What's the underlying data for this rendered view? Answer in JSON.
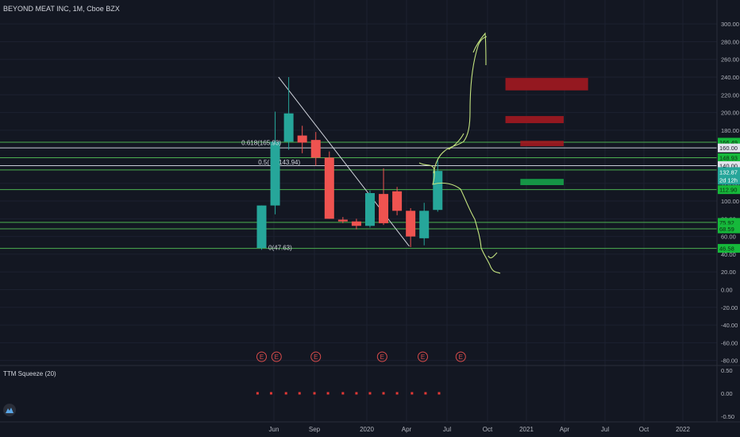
{
  "header": {
    "title": "BEYOND MEAT INC, 1M, Cboe BZX"
  },
  "indicator": {
    "label": "TTM Squeeze (20)"
  },
  "colors": {
    "background": "#131722",
    "up": "#26a69a",
    "down": "#ef5350",
    "level": "#4caf50",
    "zone_red": "#a31820",
    "zone_green": "#16a34a",
    "curve": "#c3e37f",
    "squeeze_dot": "#e53935",
    "axis_text": "#b2b5be"
  },
  "chart_data": {
    "type": "candlestick",
    "symbol": "BEYOND MEAT INC",
    "interval": "1M",
    "exchange": "Cboe BZX",
    "y_axis_ticks": [
      300,
      280,
      260,
      240,
      220,
      200,
      180,
      160,
      140,
      120,
      100,
      80,
      60,
      40,
      20,
      0,
      -20,
      -40,
      -60,
      -80
    ],
    "y_axis_tick_labels": [
      "300.00",
      "280.00",
      "260.00",
      "240.00",
      "220.00",
      "200.00",
      "180.00",
      "160.00",
      "140.00",
      "120.00",
      "100.00",
      "80.00",
      "60.00",
      "40.00",
      "20.00",
      "0.00",
      "-20.00",
      "-40.00",
      "-60.00",
      "-80.00"
    ],
    "x_axis_labels": [
      "Jun",
      "Sep",
      "2020",
      "Apr",
      "Jul",
      "Oct",
      "2021",
      "Apr",
      "Jul",
      "Oct",
      "2022"
    ],
    "candles": [
      {
        "t": 0,
        "open": 47,
        "high": 95,
        "low": 45,
        "close": 95
      },
      {
        "t": 1,
        "open": 95,
        "high": 201,
        "low": 85,
        "close": 167
      },
      {
        "t": 2,
        "open": 167,
        "high": 240,
        "low": 158,
        "close": 199
      },
      {
        "t": 3,
        "open": 174,
        "high": 185,
        "low": 154,
        "close": 166
      },
      {
        "t": 4,
        "open": 169,
        "high": 178,
        "low": 140,
        "close": 149
      },
      {
        "t": 5,
        "open": 149,
        "high": 156,
        "low": 80,
        "close": 80
      },
      {
        "t": 6,
        "open": 79,
        "high": 82,
        "low": 75,
        "close": 77
      },
      {
        "t": 7,
        "open": 77,
        "high": 80,
        "low": 68,
        "close": 72
      },
      {
        "t": 8,
        "open": 72,
        "high": 112,
        "low": 70,
        "close": 109
      },
      {
        "t": 9,
        "open": 108,
        "high": 137,
        "low": 73,
        "close": 75
      },
      {
        "t": 10,
        "open": 111,
        "high": 116,
        "low": 84,
        "close": 89
      },
      {
        "t": 11,
        "open": 89,
        "high": 92,
        "low": 48,
        "close": 60
      },
      {
        "t": 12,
        "open": 58,
        "high": 98,
        "low": 50,
        "close": 89
      },
      {
        "t": 13,
        "open": 90,
        "high": 148,
        "low": 88,
        "close": 134
      }
    ],
    "horizontal_levels": [
      {
        "value": 166.49,
        "label": "166.49"
      },
      {
        "value": 148.93,
        "label": "148.93"
      },
      {
        "value": 135.2,
        "label": "135.20"
      },
      {
        "value": 112.9,
        "label": "112.90"
      },
      {
        "value": 75.92,
        "label": "75.92"
      },
      {
        "value": 68.59,
        "label": "68.59"
      },
      {
        "value": 46.58,
        "label": "46.58"
      }
    ],
    "secondary_levels": [
      {
        "value": 160.0,
        "label": "160.00"
      },
      {
        "value": 140.0,
        "label": "140.00"
      }
    ],
    "current_price": {
      "value": 132.87,
      "label": "132.87",
      "countdown": "2d 12h"
    },
    "fibonacci_labels": [
      {
        "ratio_text": "0.618(165.93)",
        "value": 165.93
      },
      {
        "ratio_text": "0.5(",
        "value_text": "143.94)",
        "value": 143.94
      },
      {
        "ratio_text": "0(47.63)",
        "value": 47.63
      }
    ],
    "trendline": {
      "from": {
        "t": 1.25,
        "value": 240
      },
      "to": {
        "t": 10.9,
        "value": 49
      }
    },
    "zones": [
      {
        "color": "red",
        "from_t": 18.0,
        "to_t": 24.1,
        "low": 225,
        "high": 239
      },
      {
        "color": "red",
        "from_t": 18.0,
        "to_t": 22.3,
        "low": 188,
        "high": 196
      },
      {
        "color": "red",
        "from_t": 19.1,
        "to_t": 22.3,
        "low": 162,
        "high": 168
      },
      {
        "color": "green",
        "from_t": 19.1,
        "to_t": 22.3,
        "low": 118,
        "high": 125
      }
    ],
    "earnings_markers": {
      "label": "E",
      "t": [
        0.0,
        1.1,
        4.0,
        8.9,
        11.9,
        14.7
      ]
    },
    "squeeze_panel": {
      "y_ticks": [
        0.5,
        0,
        -0.5
      ],
      "y_tick_labels": [
        "0.50",
        "0.00",
        "-0.50"
      ],
      "dots": {
        "value": 0,
        "t": [
          -0.3,
          0.7,
          1.8,
          2.8,
          3.9,
          4.9,
          6.0,
          7.0,
          8.0,
          9.0,
          10.0,
          11.1,
          12.1,
          13.1
        ]
      }
    }
  }
}
